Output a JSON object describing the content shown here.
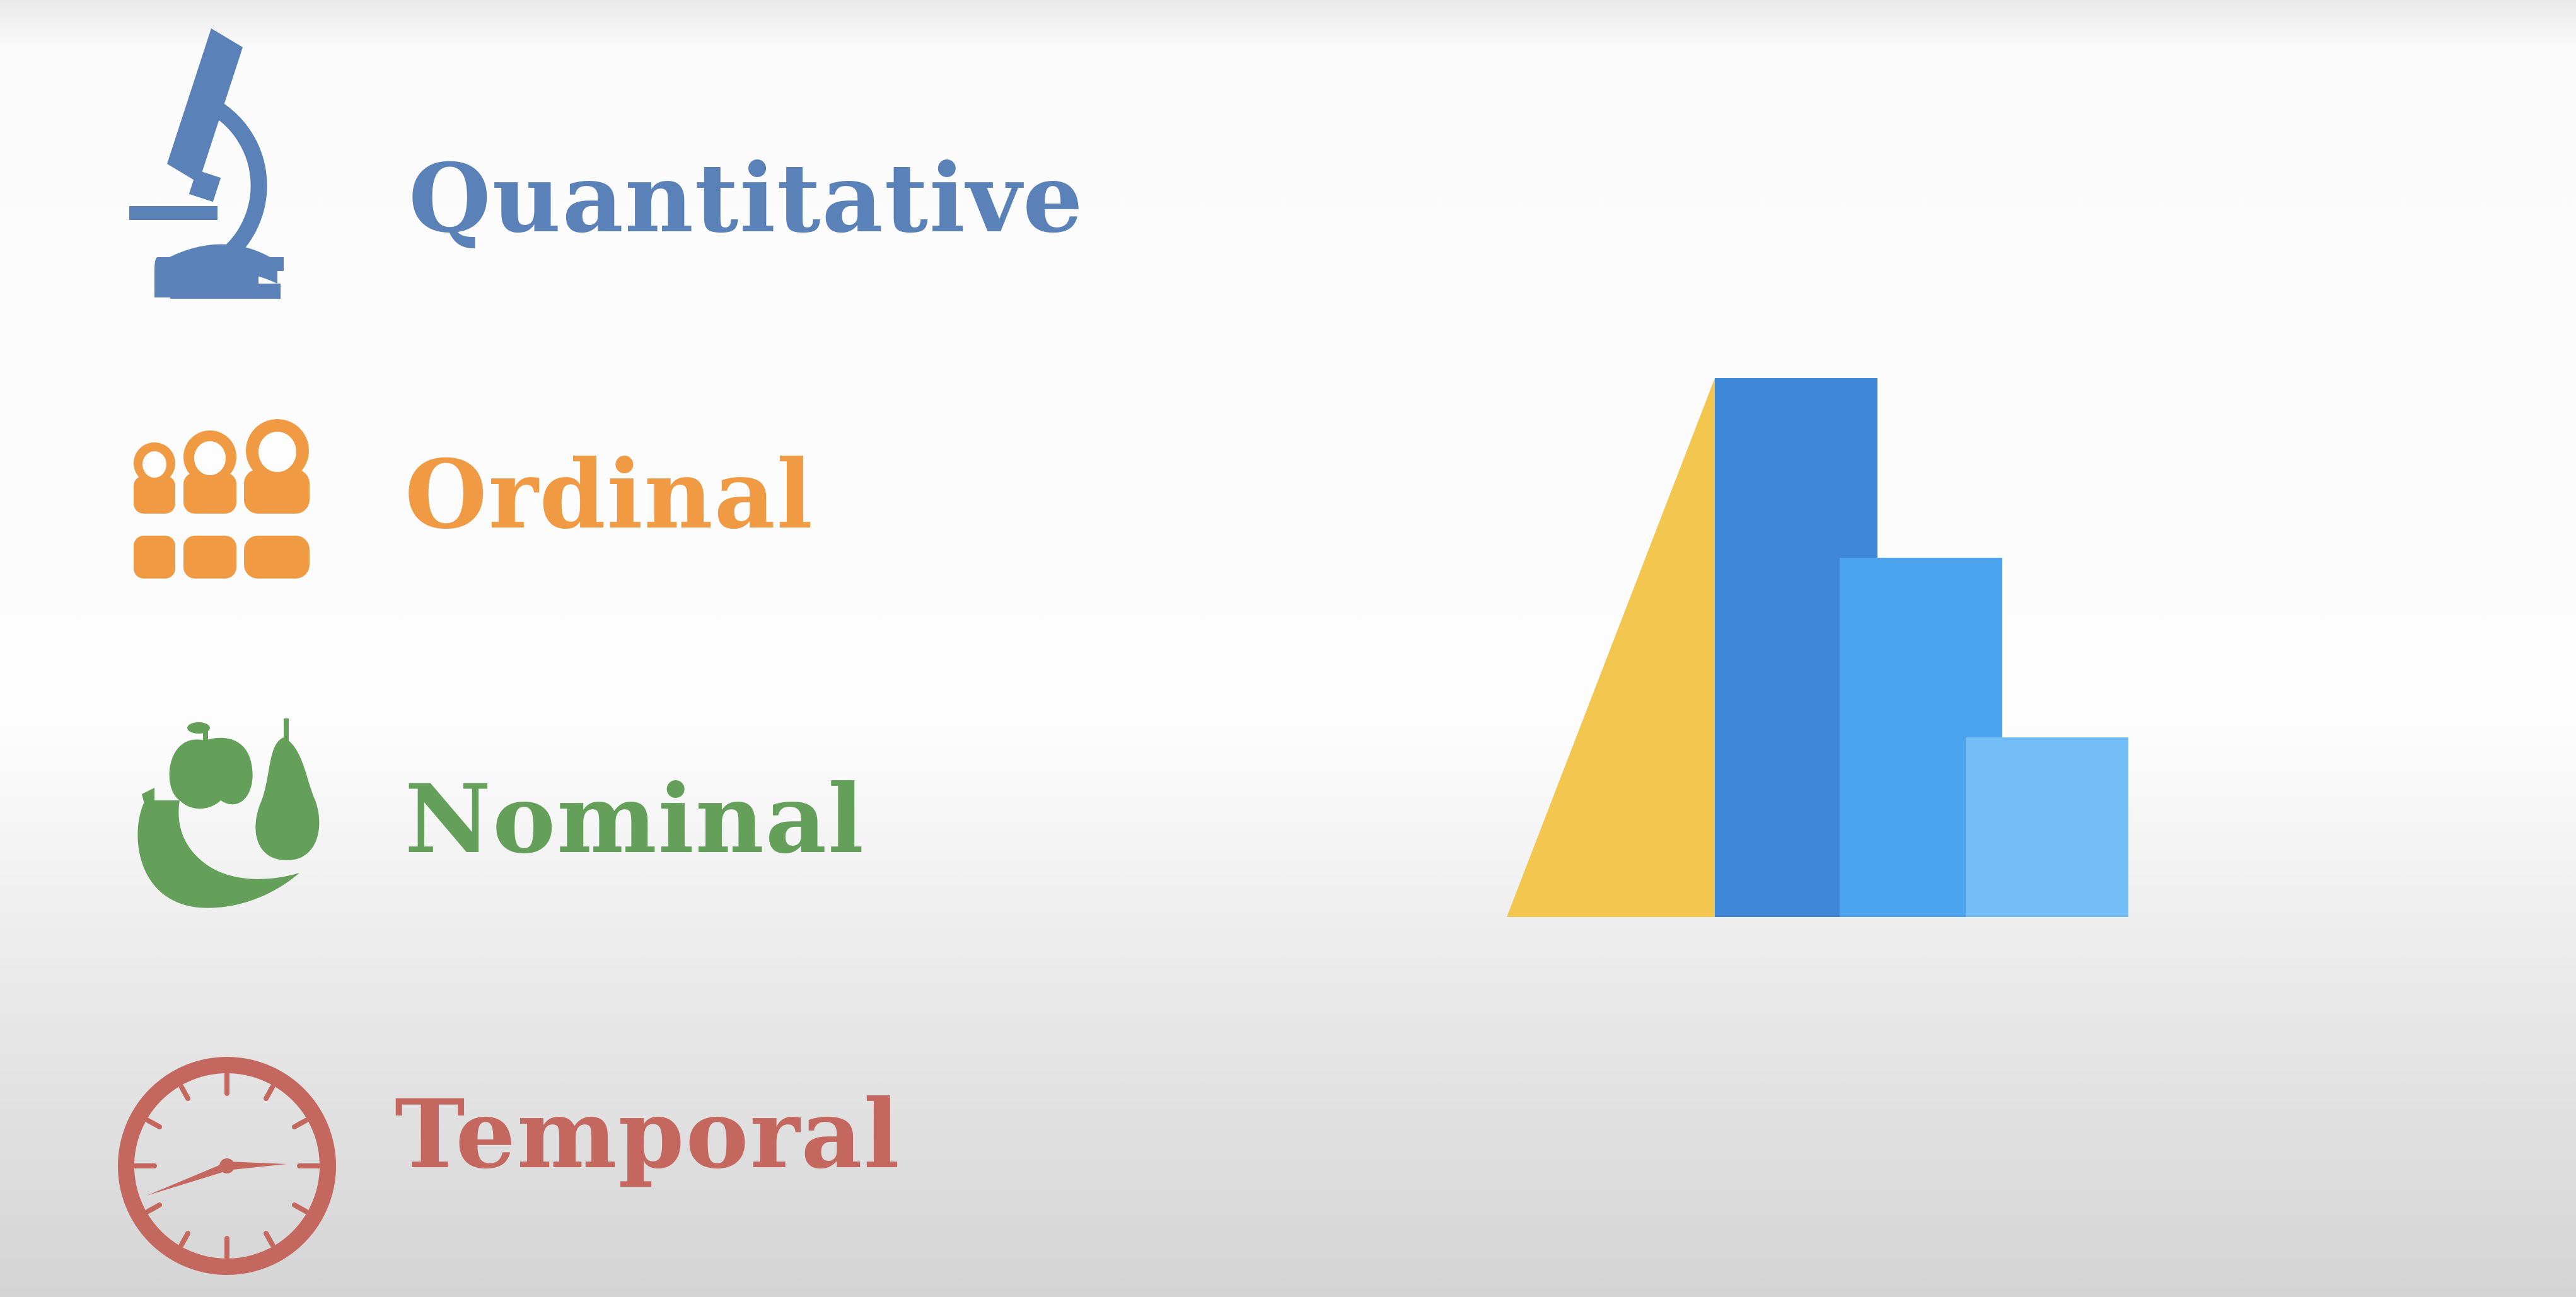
{
  "categories": [
    {
      "key": "quantitative",
      "label": "Quantitative",
      "icon": "microscope-icon",
      "color": "#5a81b8"
    },
    {
      "key": "ordinal",
      "label": "Ordinal",
      "icon": "nesting-dolls-icon",
      "color": "#f09a44"
    },
    {
      "key": "nominal",
      "label": "Nominal",
      "icon": "fruits-icon",
      "color": "#64a05a"
    },
    {
      "key": "temporal",
      "label": "Temporal",
      "icon": "clock-icon",
      "color": "#c4675f"
    }
  ],
  "logo": {
    "name": "data-types-bar-logo",
    "colors": {
      "triangle": "#f3c64f",
      "bar1": "#3f88d8",
      "bar2": "#4ca3ee",
      "bar3": "#73bdf6"
    }
  }
}
